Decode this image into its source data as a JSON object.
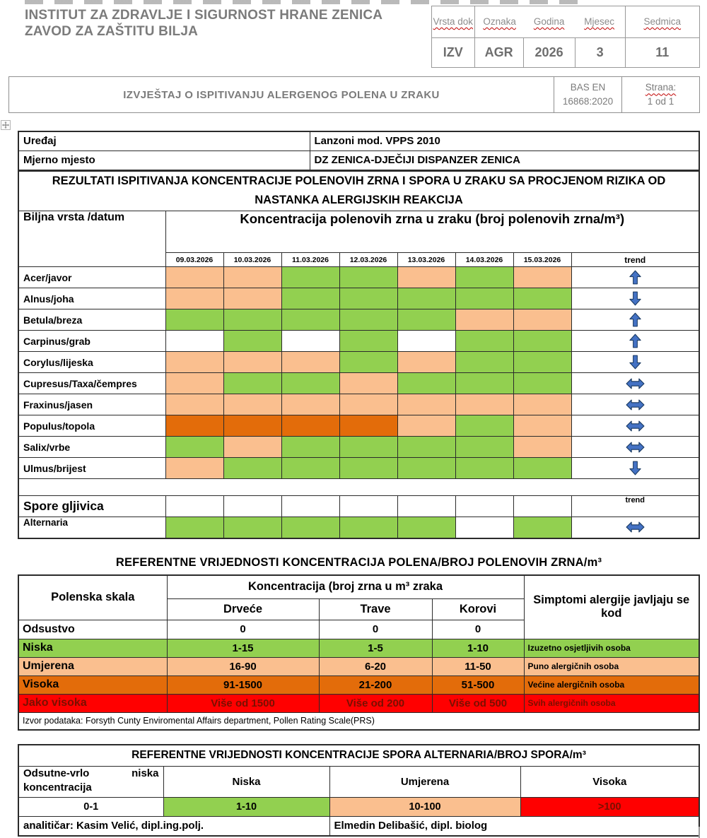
{
  "colors": {
    "green": "#92D050",
    "peach": "#FABF8F",
    "orange": "#E36C0A",
    "red": "#FF0000",
    "white": "#FFFFFF"
  },
  "header": {
    "org_line1": "INSTITUT ZA ZDRAVLJE I SIGURNOST HRANE ZENICA",
    "org_line2": "ZAVOD ZA ZAŠTITU BILJA",
    "doc_table": {
      "headers": [
        "Vrsta dok",
        "Oznaka",
        "Godina",
        "Mjesec",
        "Sedmica"
      ],
      "values": [
        "IZV",
        "AGR",
        "2026",
        "3",
        "11"
      ]
    },
    "report_title": "IZVJEŠTAJ O ISPITIVANJU ALERGENOG POLENA U ZRAKU",
    "standard_line1": "BAS EN",
    "standard_line2": "16868:2020",
    "page_label": "Strana:",
    "page_value": "1 od 1"
  },
  "info": {
    "device_label": "Uređaj",
    "device_value": "Lanzoni mod. VPPS 2010",
    "site_label": "Mjerno mjesto",
    "site_value": "DZ ZENICA-DJEČIJI DISPANZER ZENICA"
  },
  "pollen_table": {
    "title": "REZULTATI ISPITIVANJA KONCENTRACIJE POLENOVIH ZRNA I SPORA U ZRAKU SA PROCJENOM RIZIKA OD NASTANKA ALERGIJSKIH REAKCIJA",
    "col1_header": "Biljna vrsta /datum",
    "conc_header": "Koncentracija polenovih zrna u zraku (broj polenovih zrna/m³)",
    "dates": [
      "09.03.2026",
      "10.03.2026",
      "11.03.2026",
      "12.03.2026",
      "13.03.2026",
      "14.03.2026",
      "15.03.2026"
    ],
    "trend_label": "trend",
    "rows": [
      {
        "label": "Acer/javor",
        "cells": [
          "peach",
          "peach",
          "green",
          "green",
          "peach",
          "green",
          "peach"
        ],
        "trend": "up"
      },
      {
        "label": "Alnus/joha",
        "cells": [
          "peach",
          "peach",
          "green",
          "green",
          "green",
          "green",
          "green"
        ],
        "trend": "down"
      },
      {
        "label": "Betula/breza",
        "cells": [
          "green",
          "green",
          "green",
          "green",
          "green",
          "peach",
          "peach"
        ],
        "trend": "up"
      },
      {
        "label": "Carpinus/grab",
        "cells": [
          "white",
          "green",
          "white",
          "green",
          "white",
          "green",
          "green"
        ],
        "trend": "up"
      },
      {
        "label": "Corylus/lijeska",
        "cells": [
          "peach",
          "peach",
          "peach",
          "green",
          "peach",
          "green",
          "green"
        ],
        "trend": "down"
      },
      {
        "label": "Cupresus/Taxa/čempres",
        "cells": [
          "peach",
          "green",
          "green",
          "peach",
          "green",
          "green",
          "green"
        ],
        "trend": "both"
      },
      {
        "label": "Fraxinus/jasen",
        "cells": [
          "peach",
          "peach",
          "peach",
          "peach",
          "peach",
          "peach",
          "peach"
        ],
        "trend": "both"
      },
      {
        "label": "Populus/topola",
        "cells": [
          "orange",
          "orange",
          "orange",
          "orange",
          "peach",
          "green",
          "peach"
        ],
        "trend": "both"
      },
      {
        "label": "Salix/vrbe",
        "cells": [
          "green",
          "peach",
          "green",
          "green",
          "green",
          "green",
          "peach"
        ],
        "trend": "both"
      },
      {
        "label": "Ulmus/brijest",
        "cells": [
          "peach",
          "green",
          "green",
          "green",
          "green",
          "green",
          "green"
        ],
        "trend": "down"
      }
    ],
    "spore_section_label": "Spore gljivica",
    "spore_trend_label": "trend",
    "spore_rows": [
      {
        "label": "Alternaria",
        "cells": [
          "green",
          "green",
          "green",
          "green",
          "green",
          "white",
          "green"
        ],
        "trend": "both"
      }
    ]
  },
  "reference_table": {
    "heading": "REFERENTNE VRIJEDNOSTI KONCENTRACIJA POLENA/BROJ POLENOVIH ZRNA/m³",
    "scale_header": "Polenska skala",
    "conc_header": "Koncentracija (broj zrna u m³ zraka",
    "symptoms_header": "Simptomi alergije javljaju se kod",
    "type_headers": [
      "Drveće",
      "Trave",
      "Korovi"
    ],
    "rows": [
      {
        "label": "Odsustvo",
        "values": [
          "0",
          "0",
          "0"
        ],
        "symptom": "",
        "bg": "white"
      },
      {
        "label": "Niska",
        "values": [
          "1-15",
          "1-5",
          "1-10"
        ],
        "symptom": "Izuzetno osjetljivih osoba",
        "bg": "green"
      },
      {
        "label": "Umjerena",
        "values": [
          "16-90",
          "6-20",
          "11-50"
        ],
        "symptom": "Puno alergičnih osoba",
        "bg": "peach"
      },
      {
        "label": "Visoka",
        "values": [
          "91-1500",
          "21-200",
          "51-500"
        ],
        "symptom": "Većine alergičnih osoba",
        "bg": "orange"
      },
      {
        "label": "Jako visoka",
        "values": [
          "Više od 1500",
          "Više od 200",
          "Više od 500"
        ],
        "symptom": "Svih alergičnih osoba",
        "bg": "red"
      }
    ],
    "source_note": "Izvor podataka: Forsyth Cunty Enviromental Affairs department, Pollen Rating Scale(PRS)"
  },
  "alternaria_table": {
    "title": "REFERENTNE VRIJEDNOSTI KONCENTRACIJE SPORA ALTERNARIA/BROJ SPORA/m³",
    "headers": [
      "Odsutne-vrlo niska koncentracija",
      "Niska",
      "Umjerena",
      "Visoka"
    ],
    "values": [
      {
        "text": "0-1",
        "bg": "white"
      },
      {
        "text": "1-10",
        "bg": "green"
      },
      {
        "text": "10-100",
        "bg": "peach"
      },
      {
        "text": ">100",
        "bg": "red"
      }
    ],
    "analyst_left": "analitičar: Kasim Velić,  dipl.ing.polj.",
    "analyst_right": "Elmedin Delibašić, dipl. biolog"
  }
}
